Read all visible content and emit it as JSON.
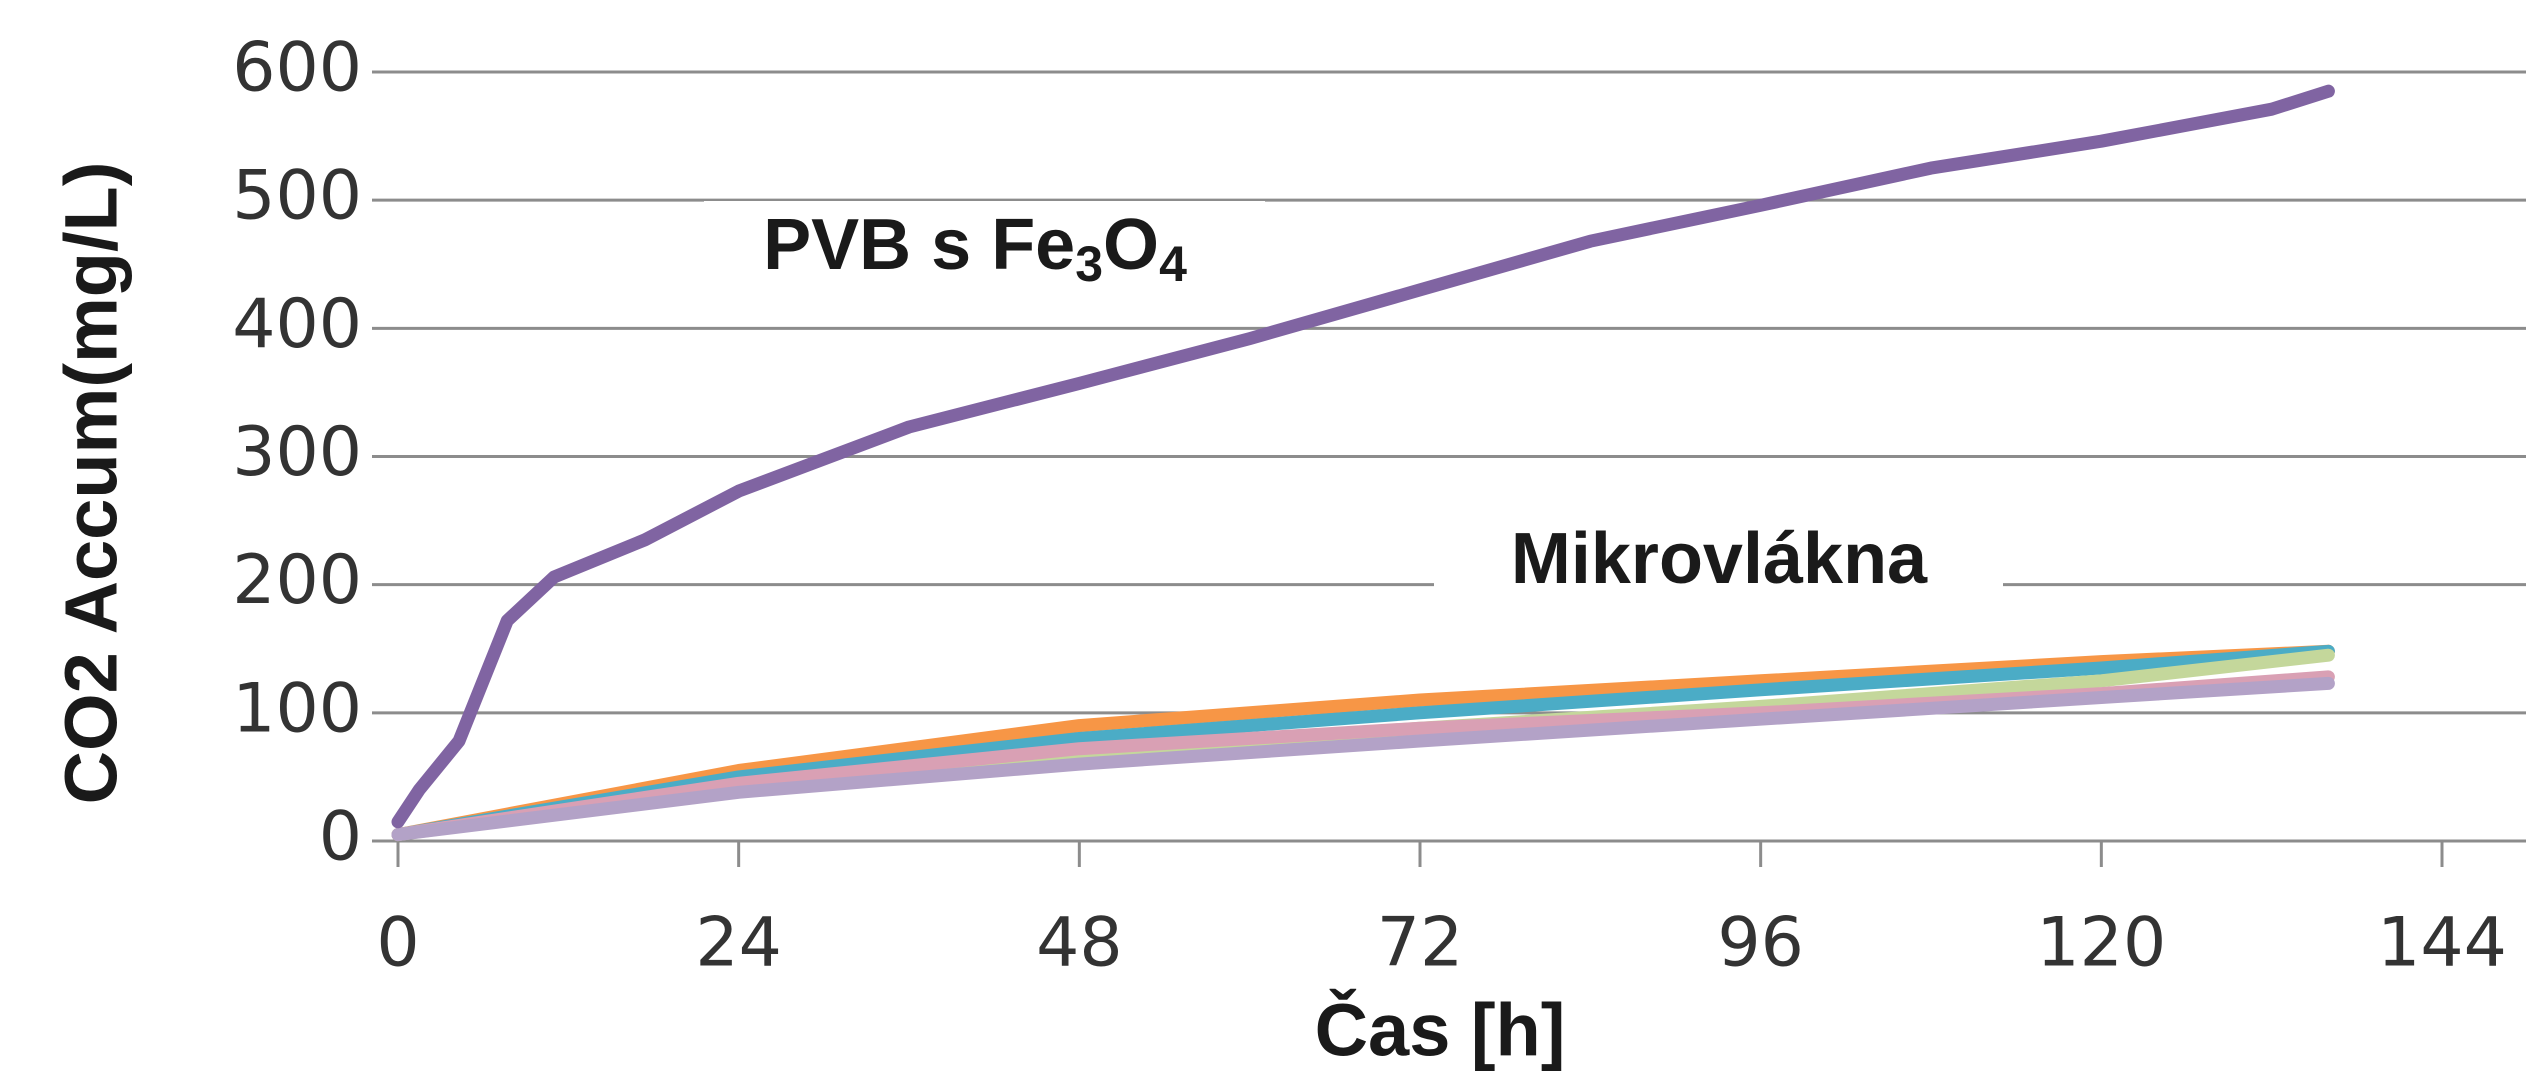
{
  "chart_data": {
    "type": "line",
    "y_label": "CO2 Accum(mg/L)",
    "x_label": "Čas [h]",
    "annotations": [
      {
        "parts": [
          "PVB s Fe",
          "3",
          "O",
          "4"
        ]
      },
      {
        "parts": [
          "Mikrovlákna"
        ]
      }
    ],
    "xlim": [
      0,
      144
    ],
    "xticks": [
      0,
      24,
      48,
      72,
      96,
      120,
      144
    ],
    "ylim": [
      0,
      600
    ],
    "yticks": [
      0,
      100,
      200,
      300,
      400,
      500,
      600
    ],
    "grid": true,
    "series": [
      {
        "color": "#f79646",
        "x": [
          0,
          24,
          48,
          72,
          96,
          120,
          136
        ],
        "values": [
          5,
          55,
          90,
          110,
          125,
          140,
          148
        ]
      },
      {
        "color": "#4bacc6",
        "x": [
          0,
          24,
          48,
          72,
          96,
          120,
          136
        ],
        "values": [
          5,
          50,
          80,
          100,
          118,
          135,
          148
        ]
      },
      {
        "color": "#c4d79b",
        "x": [
          0,
          24,
          48,
          72,
          96,
          120,
          136
        ],
        "values": [
          5,
          40,
          68,
          88,
          105,
          125,
          145
        ]
      },
      {
        "color": "#d9a0b4",
        "x": [
          0,
          24,
          48,
          72,
          96,
          120,
          136
        ],
        "values": [
          5,
          45,
          72,
          88,
          100,
          115,
          128
        ]
      },
      {
        "color": "#b3a2c7",
        "x": [
          0,
          24,
          48,
          72,
          96,
          120,
          136
        ],
        "values": [
          5,
          38,
          60,
          78,
          95,
          112,
          123
        ]
      },
      {
        "color": "#8064a2",
        "x": [
          0,
          1.5,
          4.3,
          7.7,
          11,
          17.4,
          24,
          30,
          36,
          48,
          60,
          72,
          84,
          96,
          108,
          120,
          132,
          136
        ],
        "values": [
          15,
          40,
          78,
          172,
          206,
          235,
          273,
          298,
          323,
          357,
          392,
          430,
          468,
          496,
          525,
          546,
          571,
          585
        ]
      }
    ]
  }
}
